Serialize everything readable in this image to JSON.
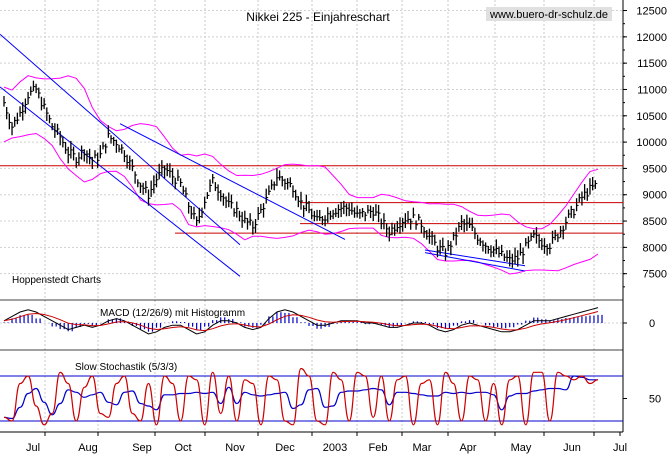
{
  "chart_data": {
    "type": "line",
    "title": "Nikkei 225 - Einjahreschart",
    "watermark": "www.buero-dr-schulz.de",
    "price_panel": {
      "type": "candlestick-line",
      "ylim": [
        7000,
        12700
      ],
      "ticks": [
        7500,
        8000,
        8500,
        9000,
        9500,
        10000,
        10500,
        11000,
        11500,
        12000,
        12500
      ],
      "source_label": "Hoppenstedt Charts",
      "close": [
        10750,
        10300,
        10550,
        10900,
        11000,
        10650,
        10300,
        10100,
        9800,
        9700,
        9850,
        9650,
        9750,
        10100,
        10000,
        9800,
        9500,
        9200,
        9000,
        9300,
        9500,
        9350,
        9200,
        8800,
        8450,
        8900,
        9250,
        9050,
        8800,
        8700,
        8500,
        8400,
        8700,
        9000,
        9350,
        9250,
        9150,
        8850,
        8700,
        8500,
        8600,
        8700,
        8750,
        8750,
        8600,
        8650,
        8700,
        8500,
        8300,
        8450,
        8550,
        8550,
        8450,
        8200,
        8000,
        7900,
        8150,
        8450,
        8400,
        8200,
        8050,
        7950,
        7850,
        7750,
        7800,
        8000,
        8200,
        8100,
        8050,
        8250,
        8500,
        8700,
        8950,
        9100,
        9200
      ],
      "colors": {
        "bars": "#000000",
        "bollinger": "#ff00ff",
        "trend_lines": "#0000ff",
        "support_resistance": "#cc0000"
      },
      "resistance_levels": [
        9550,
        8850,
        8450,
        8270
      ]
    },
    "macd_panel": {
      "label": "MACD (12/26/9) mit Histogramm",
      "ticks": [
        0
      ],
      "macd": [
        0.1,
        0.3,
        0.5,
        0.6,
        0.5,
        0.3,
        0.1,
        -0.1,
        -0.3,
        -0.2,
        -0.1,
        -0.2,
        -0.1,
        0.1,
        0.2,
        0.1,
        -0.1,
        -0.3,
        -0.5,
        -0.4,
        -0.2,
        -0.1,
        -0.1,
        -0.3,
        -0.5,
        -0.4,
        -0.1,
        0.1,
        0.1,
        0.0,
        -0.2,
        -0.3,
        -0.2,
        0.2,
        0.5,
        0.6,
        0.5,
        0.3,
        0.1,
        -0.1,
        -0.1,
        0.0,
        0.1,
        0.1,
        0.1,
        0.0,
        0.0,
        -0.1,
        -0.2,
        -0.2,
        -0.1,
        0.0,
        0.0,
        -0.1,
        -0.3,
        -0.4,
        -0.3,
        -0.1,
        0.0,
        -0.1,
        -0.2,
        -0.3,
        -0.4,
        -0.4,
        -0.3,
        -0.1,
        0.1,
        0.1,
        0.1,
        0.2,
        0.3,
        0.4,
        0.5,
        0.6,
        0.7
      ],
      "colors": {
        "macd": "#000000",
        "signal": "#cc0000",
        "histogram": "#0000cc"
      }
    },
    "stochastic_panel": {
      "label": "Slow Stochastik (5/3/3)",
      "ticks": [
        50
      ],
      "levels": [
        80,
        20
      ],
      "k": [
        25,
        20,
        70,
        80,
        40,
        15,
        30,
        85,
        70,
        20,
        65,
        80,
        30,
        25,
        70,
        80,
        30,
        20,
        70,
        15,
        80,
        70,
        20,
        80,
        75,
        15,
        85,
        30,
        80,
        20,
        75,
        70,
        15,
        80,
        75,
        20,
        15,
        90,
        80,
        20,
        15,
        85,
        75,
        20,
        85,
        80,
        25,
        80,
        20,
        75,
        80,
        15,
        70,
        75,
        15,
        85,
        70,
        20,
        80,
        75,
        20,
        70,
        15,
        75,
        80,
        15,
        85,
        85,
        20,
        85,
        80,
        75,
        80,
        70,
        75
      ],
      "colors": {
        "k": "#cc0000",
        "d": "#0000cc",
        "levels": "#0000cc"
      }
    },
    "x_axis": {
      "labels": [
        "Jul",
        "Aug",
        "Sep",
        "Oct",
        "Nov",
        "Dec",
        "2003",
        "Feb",
        "Mar",
        "Apr",
        "May",
        "Jun",
        "Jul"
      ]
    },
    "grid": true
  }
}
